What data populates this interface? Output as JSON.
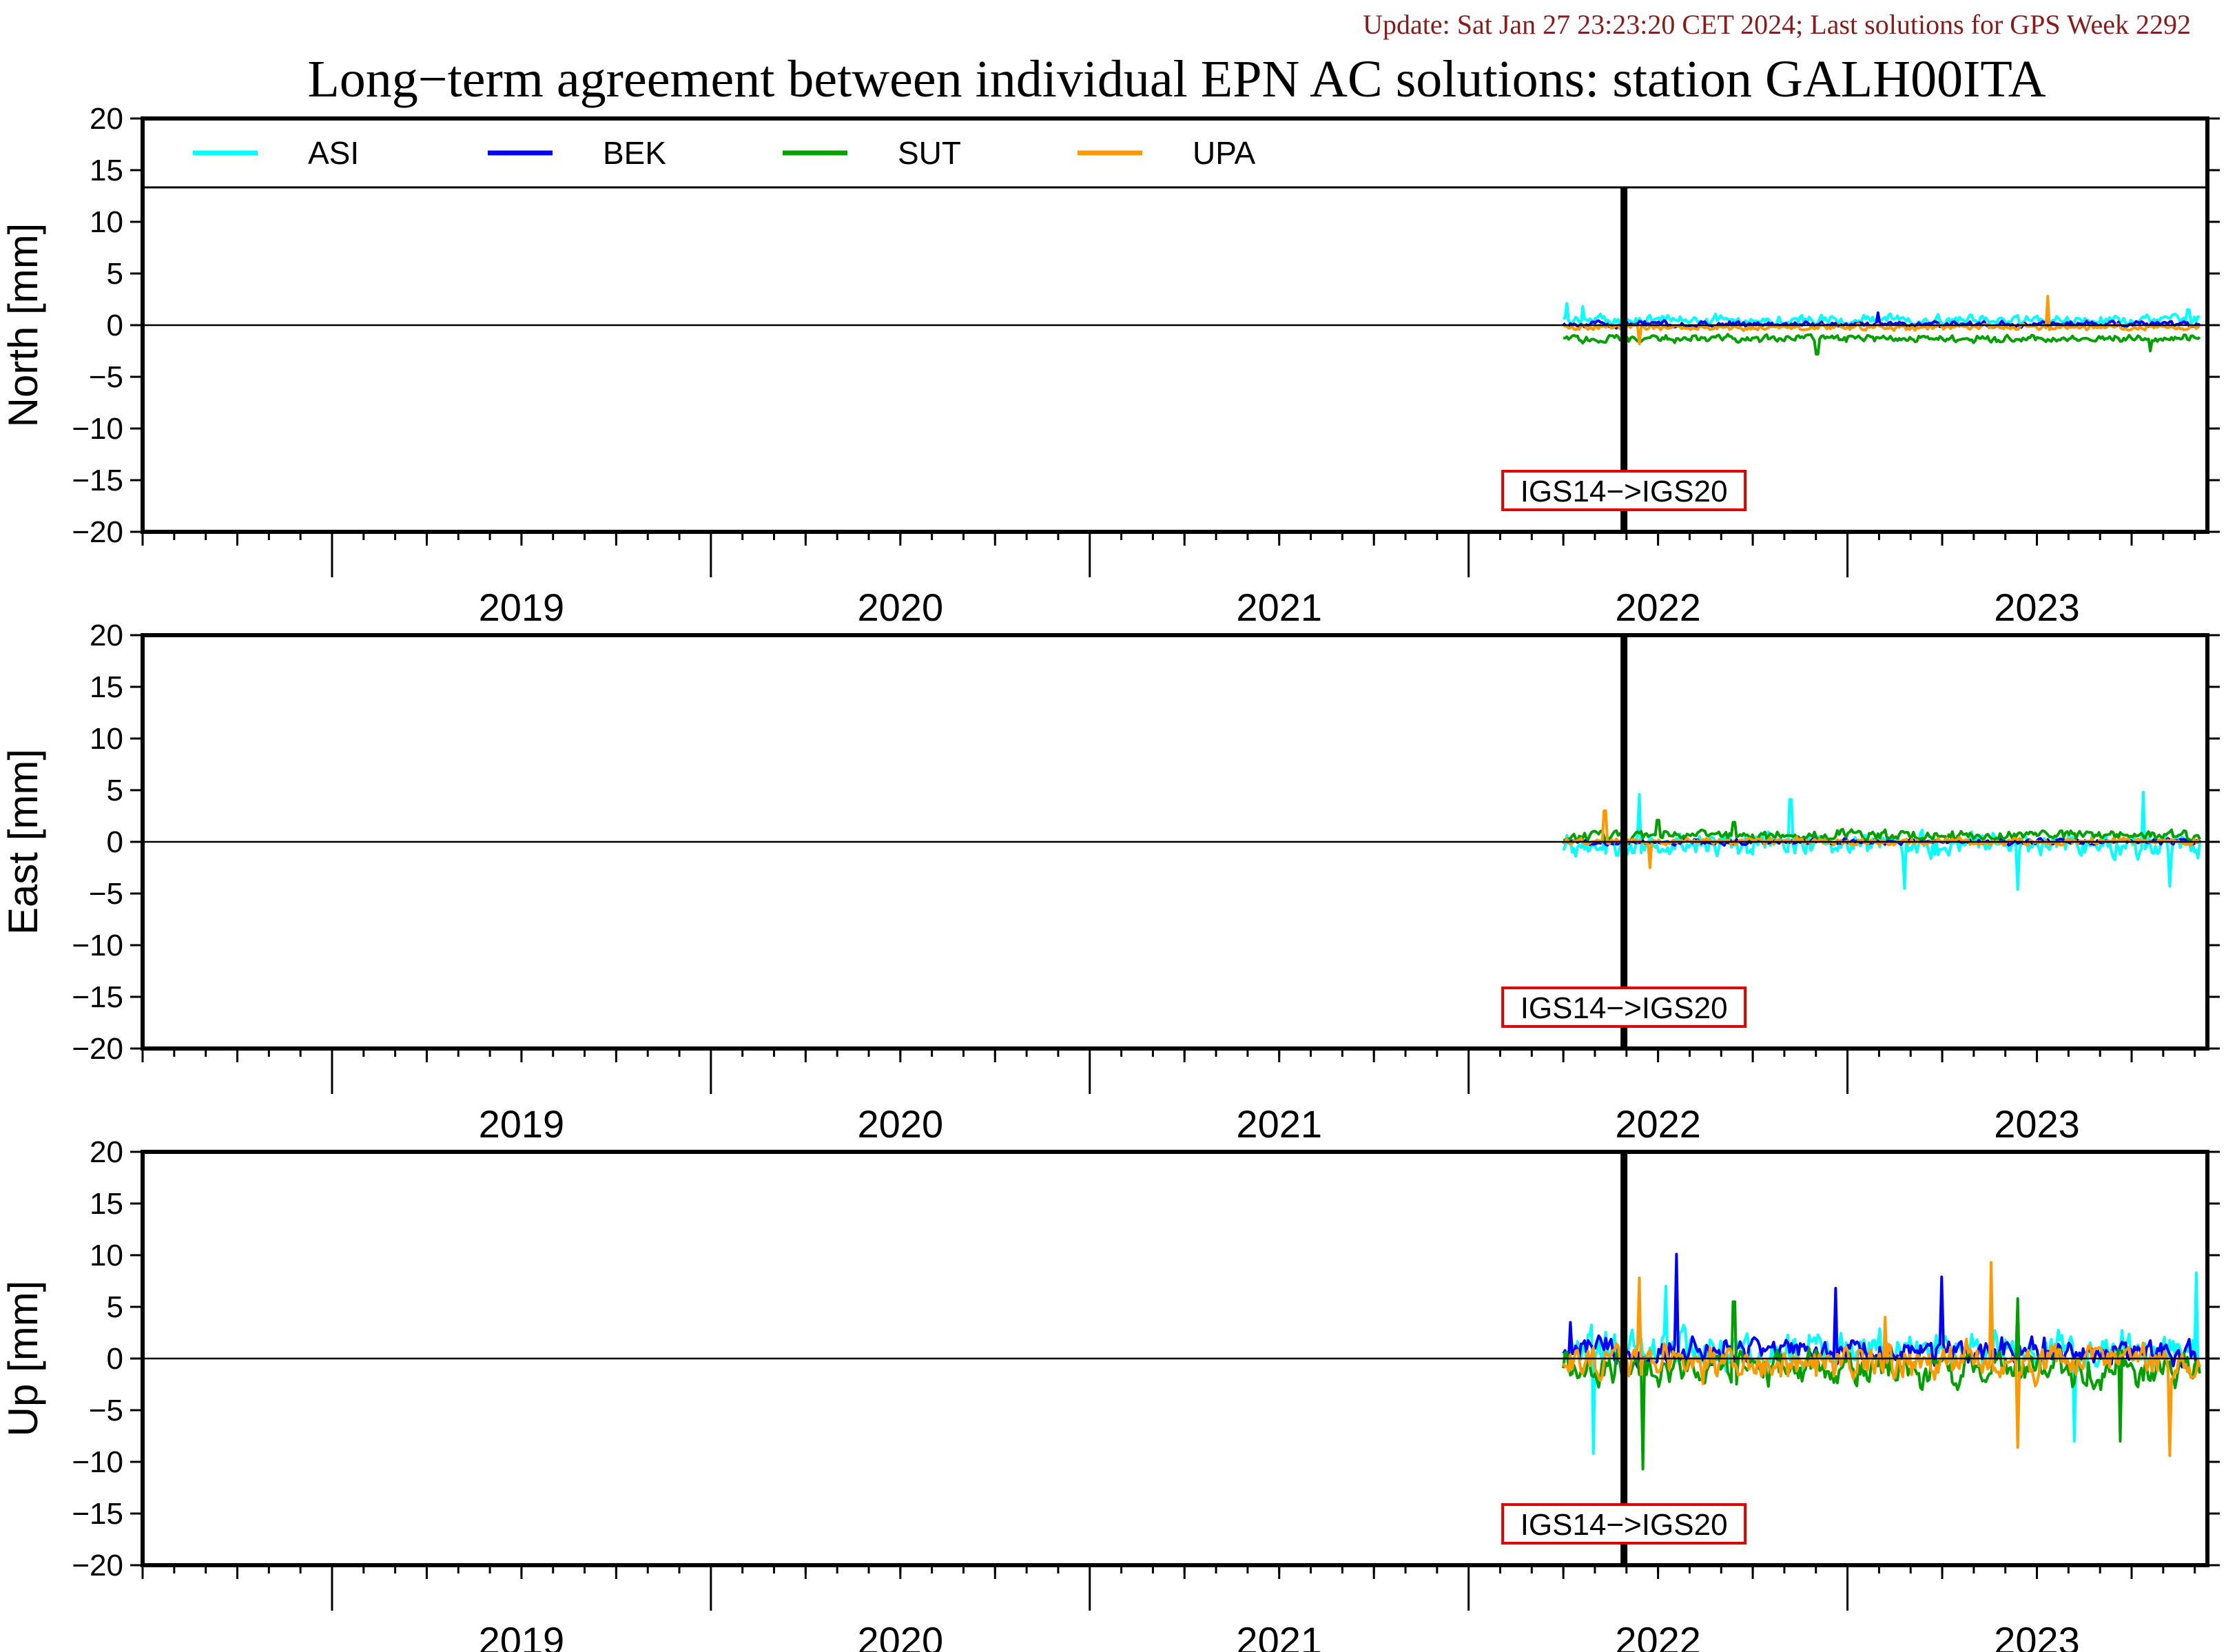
{
  "header": {
    "update_line": "Update: Sat Jan 27 23:23:20 CET 2024; Last solutions for GPS Week 2292",
    "title": "Long−term agreement between individual EPN AC solutions: station GALH00ITA"
  },
  "colors": {
    "ASI": "#00ffff",
    "BEK": "#0000ff",
    "SUT": "#00a000",
    "UPA": "#ff9900",
    "update_text": "#8b1a1a",
    "annotation_box": "#e00000"
  },
  "chart_data": [
    {
      "type": "line",
      "name": "north",
      "ylabel": "North [mm]",
      "ylim": [
        -20,
        20
      ],
      "yticks": [
        "20",
        "15",
        "10",
        "5",
        "0",
        "−5",
        "−10",
        "−15",
        "−20"
      ],
      "xlim": [
        2018.5,
        2023.95
      ],
      "x_tick_labels": [
        "2019",
        "2020",
        "2021",
        "2022",
        "2023"
      ],
      "legend": [
        "ASI",
        "BEK",
        "SUT",
        "UPA"
      ],
      "legend_position": "top-inside",
      "data_span": [
        2022.25,
        2023.93
      ],
      "reference_line": 0,
      "event": {
        "x": 2022.41,
        "label": "IGS14−>IGS20"
      },
      "series": [
        {
          "name": "ASI",
          "mean": 0.5,
          "scatter": 0.7,
          "spikes": [
            [
              2022.26,
              2.1
            ],
            [
              2022.3,
              1.8
            ],
            [
              2023.9,
              1.5
            ]
          ]
        },
        {
          "name": "BEK",
          "mean": 0.1,
          "scatter": 0.4,
          "spikes": [
            [
              2023.08,
              1.2
            ]
          ]
        },
        {
          "name": "SUT",
          "mean": -1.3,
          "scatter": 0.5,
          "spikes": [
            [
              2022.92,
              -2.8
            ],
            [
              2023.8,
              -2.5
            ]
          ]
        },
        {
          "name": "UPA",
          "mean": -0.2,
          "scatter": 0.4,
          "spikes": [
            [
              2023.53,
              -3.9
            ],
            [
              2023.53,
              2.8
            ],
            [
              2022.45,
              -1.8
            ]
          ]
        }
      ]
    },
    {
      "type": "line",
      "name": "east",
      "ylabel": "East [mm]",
      "ylim": [
        -20,
        20
      ],
      "yticks": [
        "20",
        "15",
        "10",
        "5",
        "0",
        "−5",
        "−10",
        "−15",
        "−20"
      ],
      "xlim": [
        2018.5,
        2023.95
      ],
      "x_tick_labels": [
        "2019",
        "2020",
        "2021",
        "2022",
        "2023"
      ],
      "data_span": [
        2022.25,
        2023.93
      ],
      "reference_line": 0,
      "event": {
        "x": 2022.41,
        "label": "IGS14−>IGS20"
      },
      "series": [
        {
          "name": "ASI",
          "mean": -0.3,
          "scatter": 1.6,
          "spikes": [
            [
              2022.45,
              4.6
            ],
            [
              2022.85,
              4.1
            ],
            [
              2023.15,
              -4.5
            ],
            [
              2023.45,
              -4.6
            ],
            [
              2023.78,
              4.8
            ],
            [
              2023.85,
              -4.3
            ]
          ]
        },
        {
          "name": "BEK",
          "mean": 0.0,
          "scatter": 0.4,
          "spikes": []
        },
        {
          "name": "SUT",
          "mean": 0.6,
          "scatter": 0.7,
          "spikes": [
            [
              2022.5,
              2.1
            ],
            [
              2022.7,
              1.9
            ]
          ]
        },
        {
          "name": "UPA",
          "mean": 0.0,
          "scatter": 0.5,
          "spikes": [
            [
              2022.36,
              3.0
            ],
            [
              2022.48,
              -2.5
            ]
          ]
        }
      ]
    },
    {
      "type": "line",
      "name": "up",
      "ylabel": "Up [mm]",
      "ylim": [
        -20,
        20
      ],
      "yticks": [
        "20",
        "15",
        "10",
        "5",
        "0",
        "−5",
        "−10",
        "−15",
        "−20"
      ],
      "xlim": [
        2018.5,
        2023.95
      ],
      "x_tick_labels": [
        "2019",
        "2020",
        "2021",
        "2022",
        "2023"
      ],
      "data_span": [
        2022.25,
        2023.93
      ],
      "reference_line": 0,
      "event": {
        "x": 2022.41,
        "label": "IGS14−>IGS20"
      },
      "series": [
        {
          "name": "ASI",
          "mean": 0.8,
          "scatter": 2.6,
          "spikes": [
            [
              2022.33,
              -9.2
            ],
            [
              2022.52,
              7.0
            ],
            [
              2023.6,
              -8.0
            ],
            [
              2023.92,
              8.3
            ]
          ]
        },
        {
          "name": "BEK",
          "mean": 0.6,
          "scatter": 1.9,
          "spikes": [
            [
              2022.55,
              10.1
            ],
            [
              2022.97,
              6.8
            ],
            [
              2023.25,
              7.9
            ],
            [
              2022.27,
              3.5
            ]
          ]
        },
        {
          "name": "SUT",
          "mean": -0.8,
          "scatter": 2.3,
          "spikes": [
            [
              2022.46,
              -10.7
            ],
            [
              2022.7,
              5.5
            ],
            [
              2023.45,
              5.8
            ],
            [
              2023.72,
              -8.0
            ]
          ]
        },
        {
          "name": "UPA",
          "mean": -0.3,
          "scatter": 2.4,
          "spikes": [
            [
              2022.45,
              7.8
            ],
            [
              2023.38,
              9.3
            ],
            [
              2023.45,
              -8.6
            ],
            [
              2023.85,
              -9.4
            ],
            [
              2023.1,
              4.0
            ]
          ]
        }
      ]
    }
  ]
}
